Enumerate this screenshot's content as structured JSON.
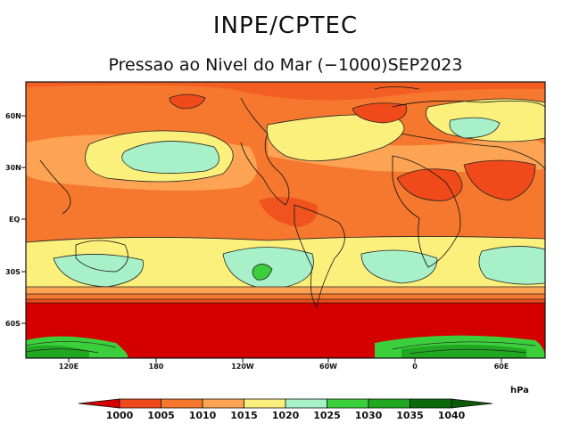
{
  "header": {
    "title": "INPE/CPTEC",
    "subtitle": "Pressao ao Nivel do Mar (−1000)SEP2023"
  },
  "map": {
    "lat_labels": [
      "60N",
      "30N",
      "EQ",
      "30S",
      "60S"
    ],
    "lon_labels": [
      "120E",
      "180",
      "120W",
      "60W",
      "0",
      "60E"
    ],
    "variable": "sea level pressure",
    "period": "SEP2023"
  },
  "colorbar": {
    "unit": "hPa",
    "levels": [
      "1000",
      "1005",
      "1010",
      "1015",
      "1020",
      "1025",
      "1030",
      "1035",
      "1040"
    ],
    "colors": [
      "#d40000",
      "#f04a1a",
      "#f5782e",
      "#fca454",
      "#fcf07c",
      "#a8f0c8",
      "#3ccf3c",
      "#20a820",
      "#0b6b0b",
      "#0a5a0a"
    ]
  }
}
